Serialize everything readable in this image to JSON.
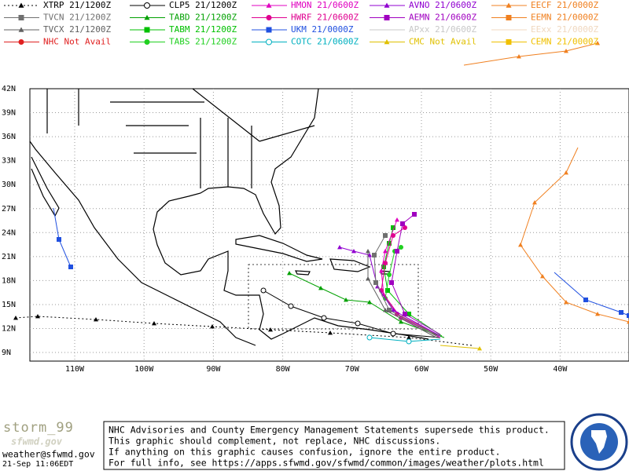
{
  "legend": [
    {
      "label": "XTRP 21/1200Z",
      "color": "#000000",
      "marker": "triangle",
      "dash": true
    },
    {
      "label": "CLP5 21/1200Z",
      "color": "#000000",
      "marker": "circle-open"
    },
    {
      "label": "HMON 21/0600Z",
      "color": "#e000c0",
      "marker": "triangle"
    },
    {
      "label": "AVNO 21/0600Z",
      "color": "#9000d0",
      "marker": "triangle"
    },
    {
      "label": "EECF 21/0000Z",
      "color": "#f08020",
      "marker": "triangle"
    },
    {
      "label": "TVCN 21/1200Z",
      "color": "#707070",
      "marker": "square"
    },
    {
      "label": "TABD 21/1200Z",
      "color": "#00a000",
      "marker": "triangle"
    },
    {
      "label": "HWRF 21/0600Z",
      "color": "#e00090",
      "marker": "circle"
    },
    {
      "label": "AEMN 21/0600Z",
      "color": "#a000c0",
      "marker": "square"
    },
    {
      "label": "EEMN 21/0000Z",
      "color": "#f08020",
      "marker": "square"
    },
    {
      "label": "TVCX 21/1200Z",
      "color": "#606060",
      "marker": "triangle"
    },
    {
      "label": "TABM 21/1200Z",
      "color": "#00c000",
      "marker": "square"
    },
    {
      "label": "UKM  21/0000Z",
      "color": "#2050e0",
      "marker": "square"
    },
    {
      "label": "APxx 21/0600Z",
      "color": "#c8c8c8",
      "marker": "none"
    },
    {
      "label": "EExx 21/0000Z",
      "color": "#f0d8c0",
      "marker": "none"
    },
    {
      "label": "NHC Not Avail",
      "color": "#e02020",
      "marker": "circle"
    },
    {
      "label": "TABS 21/1200Z",
      "color": "#20d020",
      "marker": "circle"
    },
    {
      "label": "COTC 21/0600Z",
      "color": "#00b0c0",
      "marker": "circle-open"
    },
    {
      "label": "CMC  Not Avail",
      "color": "#e0c000",
      "marker": "triangle"
    },
    {
      "label": "CEMN 21/0000Z",
      "color": "#f0c000",
      "marker": "square"
    }
  ],
  "lat_labels": [
    "42N",
    "39N",
    "36N",
    "33N",
    "30N",
    "27N",
    "24N",
    "21N",
    "18N",
    "15N",
    "12N",
    "9N"
  ],
  "lon_labels": [
    "110W",
    "100W",
    "90W",
    "80W",
    "70W",
    "60W",
    "50W",
    "40W"
  ],
  "footer": {
    "brand": "storm_99",
    "brand2": "sfwmd.gov",
    "email": "weather@sfwmd.gov",
    "time": "21-Sep 11:06EDT",
    "notice": [
      "NHC Advisories and County Emergency Management Statements supersede this product.",
      "This graphic should complement, not replace, NHC discussions.",
      "If anything on this graphic causes confusion, ignore the entire product.",
      "For full info, see  https://apps.sfwmd.gov/sfwmd/common/images/weather/plots.html"
    ]
  }
}
